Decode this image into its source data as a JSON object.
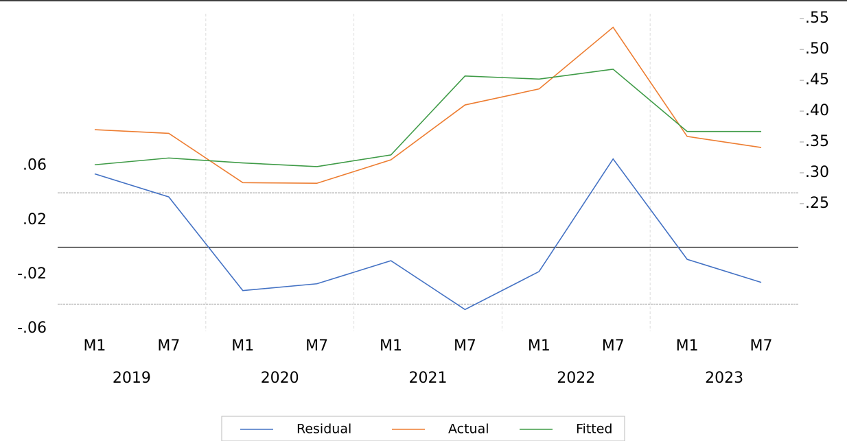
{
  "chart_data": {
    "type": "line",
    "categories": [
      "M1",
      "M7",
      "M1",
      "M7",
      "M1",
      "M7",
      "M1",
      "M7",
      "M1",
      "M7"
    ],
    "groups": [
      "2019",
      "2020",
      "2021",
      "2022",
      "2023"
    ],
    "series": [
      {
        "name": "Residual",
        "color": "#4472c4",
        "axis": "y",
        "values": [
          0.054,
          0.037,
          -0.032,
          -0.027,
          -0.01,
          -0.046,
          -0.018,
          0.065,
          -0.009,
          -0.026
        ]
      },
      {
        "name": "Actual",
        "color": "#ed7d31",
        "axis": "y2",
        "values": [
          0.37,
          0.364,
          0.284,
          0.283,
          0.321,
          0.41,
          0.436,
          0.536,
          0.359,
          0.341
        ]
      },
      {
        "name": "Fitted",
        "color": "#3f9b47",
        "axis": "y2",
        "values": [
          0.313,
          0.324,
          0.316,
          0.31,
          0.329,
          0.457,
          0.452,
          0.468,
          0.367,
          0.367
        ]
      }
    ],
    "ylim": [
      -0.062,
      0.172
    ],
    "yticks": [
      {
        "value": -0.06,
        "label": "-.06"
      },
      {
        "value": -0.02,
        "label": "-.02"
      },
      {
        "value": 0.02,
        "label": ".02"
      },
      {
        "value": 0.06,
        "label": ".06"
      }
    ],
    "y2lim": [
      0.043,
      0.558
    ],
    "y2ticks": [
      {
        "value": 0.25,
        "label": ".25"
      },
      {
        "value": 0.3,
        "label": ".30"
      },
      {
        "value": 0.35,
        "label": ".35"
      },
      {
        "value": 0.4,
        "label": ".40"
      },
      {
        "value": 0.45,
        "label": ".45"
      },
      {
        "value": 0.5,
        "label": ".50"
      },
      {
        "value": 0.55,
        "label": ".55"
      }
    ],
    "zero_line": 0,
    "band_lines": [
      0.04,
      -0.042
    ],
    "legend": "bottom"
  }
}
